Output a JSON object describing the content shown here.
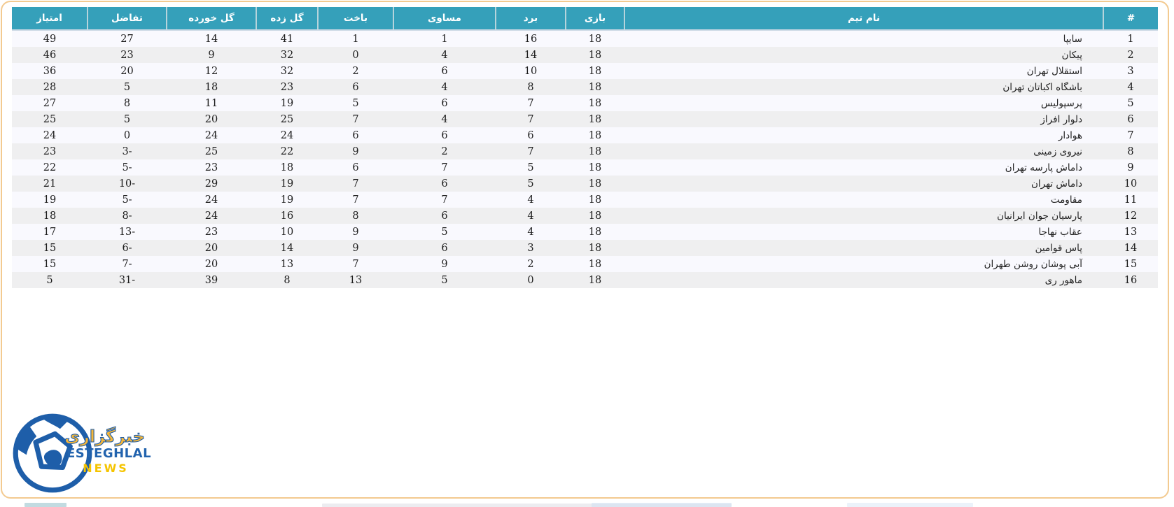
{
  "page": {
    "border_color": "#f3ca90",
    "background": "#ffffff"
  },
  "table": {
    "header_bg": "#35a0ba",
    "header_text_color": "#ffffff",
    "row_bg": "#f9f9fe",
    "row_alt_bg": "#efeff0",
    "columns": [
      {
        "key": "rank",
        "label": "#"
      },
      {
        "key": "team",
        "label": "نام تیم"
      },
      {
        "key": "played",
        "label": "بازی"
      },
      {
        "key": "won",
        "label": "برد"
      },
      {
        "key": "drawn",
        "label": "مساوی"
      },
      {
        "key": "lost",
        "label": "باخت"
      },
      {
        "key": "gf",
        "label": "گل زده"
      },
      {
        "key": "ga",
        "label": "گل خورده"
      },
      {
        "key": "gd",
        "label": "تفاضل"
      },
      {
        "key": "points",
        "label": "امتیاز"
      }
    ],
    "rows": [
      {
        "rank": "1",
        "team": "سایپا",
        "played": "18",
        "won": "16",
        "drawn": "1",
        "lost": "1",
        "gf": "41",
        "ga": "14",
        "gd": "27",
        "points": "49"
      },
      {
        "rank": "2",
        "team": "پیکان",
        "played": "18",
        "won": "14",
        "drawn": "4",
        "lost": "0",
        "gf": "32",
        "ga": "9",
        "gd": "23",
        "points": "46"
      },
      {
        "rank": "3",
        "team": "استقلال تهران",
        "played": "18",
        "won": "10",
        "drawn": "6",
        "lost": "2",
        "gf": "32",
        "ga": "12",
        "gd": "20",
        "points": "36"
      },
      {
        "rank": "4",
        "team": "باشگاه اکباتان تهران",
        "played": "18",
        "won": "8",
        "drawn": "4",
        "lost": "6",
        "gf": "23",
        "ga": "18",
        "gd": "5",
        "points": "28"
      },
      {
        "rank": "5",
        "team": "پرسپولیس",
        "played": "18",
        "won": "7",
        "drawn": "6",
        "lost": "5",
        "gf": "19",
        "ga": "11",
        "gd": "8",
        "points": "27"
      },
      {
        "rank": "6",
        "team": "دلوار افراز",
        "played": "18",
        "won": "7",
        "drawn": "4",
        "lost": "7",
        "gf": "25",
        "ga": "20",
        "gd": "5",
        "points": "25"
      },
      {
        "rank": "7",
        "team": "هوادار",
        "played": "18",
        "won": "6",
        "drawn": "6",
        "lost": "6",
        "gf": "24",
        "ga": "24",
        "gd": "0",
        "points": "24"
      },
      {
        "rank": "8",
        "team": "نیروی زمینی",
        "played": "18",
        "won": "7",
        "drawn": "2",
        "lost": "9",
        "gf": "22",
        "ga": "25",
        "gd": "3-",
        "points": "23"
      },
      {
        "rank": "9",
        "team": "داماش پارسه تهران",
        "played": "18",
        "won": "5",
        "drawn": "7",
        "lost": "6",
        "gf": "18",
        "ga": "23",
        "gd": "5-",
        "points": "22"
      },
      {
        "rank": "10",
        "team": "داماش تهران",
        "played": "18",
        "won": "5",
        "drawn": "6",
        "lost": "7",
        "gf": "19",
        "ga": "29",
        "gd": "10-",
        "points": "21"
      },
      {
        "rank": "11",
        "team": "مقاومت",
        "played": "18",
        "won": "4",
        "drawn": "7",
        "lost": "7",
        "gf": "19",
        "ga": "24",
        "gd": "5-",
        "points": "19"
      },
      {
        "rank": "12",
        "team": "پارسیان جوان ایرانیان",
        "played": "18",
        "won": "4",
        "drawn": "6",
        "lost": "8",
        "gf": "16",
        "ga": "24",
        "gd": "8-",
        "points": "18"
      },
      {
        "rank": "13",
        "team": "عقاب نهاجا",
        "played": "18",
        "won": "4",
        "drawn": "5",
        "lost": "9",
        "gf": "10",
        "ga": "23",
        "gd": "13-",
        "points": "17"
      },
      {
        "rank": "14",
        "team": "پاس قوامین",
        "played": "18",
        "won": "3",
        "drawn": "6",
        "lost": "9",
        "gf": "14",
        "ga": "20",
        "gd": "6-",
        "points": "15"
      },
      {
        "rank": "15",
        "team": "آبی پوشان روشن طهران",
        "played": "18",
        "won": "2",
        "drawn": "9",
        "lost": "7",
        "gf": "13",
        "ga": "20",
        "gd": "7-",
        "points": "15"
      },
      {
        "rank": "16",
        "team": "ماهور ری",
        "played": "18",
        "won": "0",
        "drawn": "5",
        "lost": "13",
        "gf": "8",
        "ga": "39",
        "gd": "31-",
        "points": "5"
      }
    ]
  },
  "logo": {
    "line1": "خبرگزاری",
    "line2": "ESTEGHLAL",
    "line3": "NEWS",
    "ball_color": "#1e5ea9",
    "blue": "#2263ae",
    "yellow": "#f5c400",
    "orange_yellow": "#f4b63a"
  }
}
